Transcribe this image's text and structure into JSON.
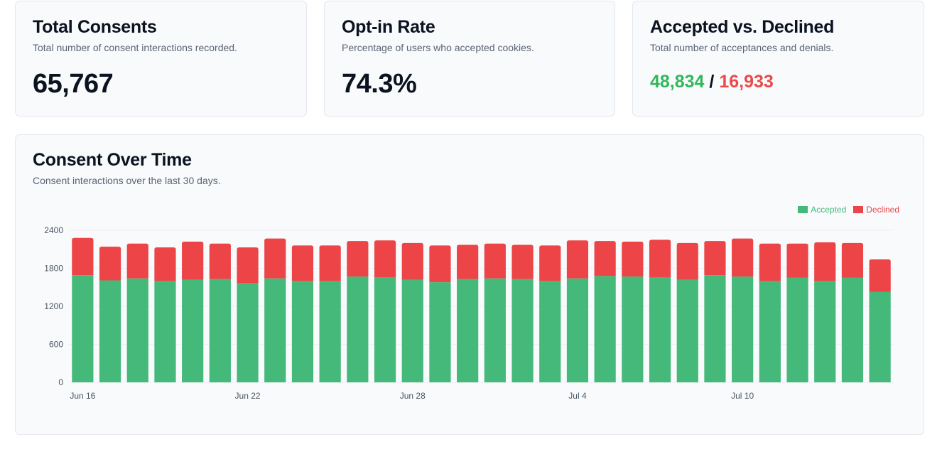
{
  "cards": {
    "total": {
      "title": "Total Consents",
      "description": "Total number of consent interactions recorded.",
      "value": "65,767"
    },
    "optin": {
      "title": "Opt-in Rate",
      "description": "Percentage of users who accepted cookies.",
      "value": "74.3%"
    },
    "split": {
      "title": "Accepted vs. Declined",
      "description": "Total number of acceptances and denials.",
      "accepted": "48,834",
      "separator": "/",
      "declined": "16,933"
    }
  },
  "chart": {
    "title": "Consent Over Time",
    "description": "Consent interactions over the last 30 days.",
    "legend": {
      "accepted": "Accepted",
      "declined": "Declined"
    }
  },
  "colors": {
    "accepted": "#44b97a",
    "declined": "#ec4447",
    "grid": "#eef0f3",
    "axis_text": "#4b5563"
  },
  "chart_data": {
    "type": "bar",
    "stacked": true,
    "title": "Consent Over Time",
    "xlabel": "",
    "ylabel": "",
    "ylim": [
      0,
      2400
    ],
    "yticks": [
      0,
      600,
      1200,
      1800,
      2400
    ],
    "categories": [
      "Jun 16",
      "Jun 17",
      "Jun 18",
      "Jun 19",
      "Jun 20",
      "Jun 21",
      "Jun 22",
      "Jun 23",
      "Jun 24",
      "Jun 25",
      "Jun 26",
      "Jun 27",
      "Jun 28",
      "Jun 29",
      "Jun 30",
      "Jul 1",
      "Jul 2",
      "Jul 3",
      "Jul 4",
      "Jul 5",
      "Jul 6",
      "Jul 7",
      "Jul 8",
      "Jul 9",
      "Jul 10",
      "Jul 11",
      "Jul 12",
      "Jul 13",
      "Jul 14",
      "Jul 15"
    ],
    "xtick_labels": [
      "Jun 16",
      "Jun 22",
      "Jun 28",
      "Jul 4",
      "Jul 10"
    ],
    "series": [
      {
        "name": "Accepted",
        "values": [
          1690,
          1610,
          1640,
          1600,
          1620,
          1630,
          1570,
          1640,
          1600,
          1600,
          1670,
          1660,
          1620,
          1580,
          1630,
          1640,
          1630,
          1600,
          1640,
          1680,
          1670,
          1660,
          1620,
          1690,
          1670,
          1600,
          1650,
          1600,
          1650,
          1430
        ]
      },
      {
        "name": "Declined",
        "values": [
          590,
          530,
          550,
          530,
          600,
          560,
          560,
          630,
          560,
          560,
          560,
          580,
          580,
          580,
          540,
          550,
          540,
          560,
          600,
          550,
          550,
          590,
          580,
          540,
          600,
          590,
          540,
          610,
          550,
          510
        ]
      }
    ]
  }
}
